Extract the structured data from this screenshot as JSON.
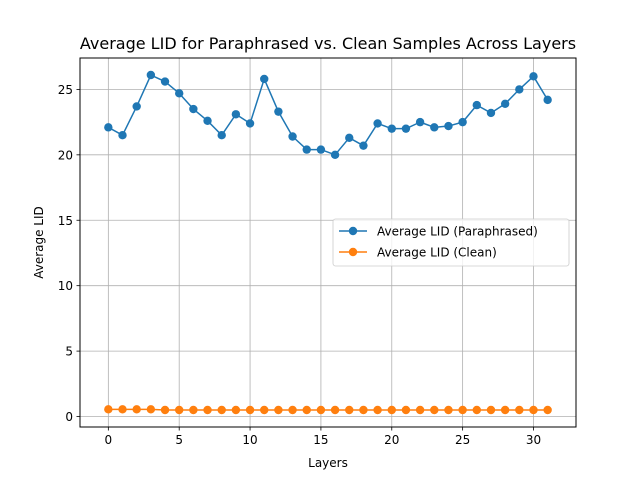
{
  "chart_data": {
    "type": "line",
    "title": "Average LID for Paraphrased vs. Clean Samples Across Layers",
    "xlabel": "Layers",
    "ylabel": "Average LID",
    "xlim": [
      -2.0,
      33.0
    ],
    "ylim": [
      -0.8,
      27.4
    ],
    "xticks": [
      0,
      5,
      10,
      15,
      20,
      25,
      30
    ],
    "yticks": [
      0,
      5,
      10,
      15,
      20,
      25
    ],
    "grid": true,
    "legend_position": "center-right",
    "x": [
      0,
      1,
      2,
      3,
      4,
      5,
      6,
      7,
      8,
      9,
      10,
      11,
      12,
      13,
      14,
      15,
      16,
      17,
      18,
      19,
      20,
      21,
      22,
      23,
      24,
      25,
      26,
      27,
      28,
      29,
      30,
      31
    ],
    "series": [
      {
        "name": "Average LID (Paraphrased)",
        "color": "#1f77b4",
        "values": [
          22.1,
          21.5,
          23.7,
          26.1,
          25.6,
          24.7,
          23.5,
          22.6,
          21.5,
          23.1,
          22.4,
          25.8,
          23.3,
          21.4,
          20.4,
          20.4,
          20.0,
          21.3,
          20.7,
          22.4,
          22.0,
          22.0,
          22.5,
          22.1,
          22.2,
          22.5,
          23.8,
          23.2,
          23.9,
          25.0,
          26.0,
          24.2
        ]
      },
      {
        "name": "Average LID (Clean)",
        "color": "#ff7f0e",
        "values": [
          0.55,
          0.55,
          0.55,
          0.55,
          0.5,
          0.5,
          0.5,
          0.5,
          0.5,
          0.5,
          0.5,
          0.5,
          0.5,
          0.5,
          0.5,
          0.5,
          0.5,
          0.5,
          0.5,
          0.5,
          0.5,
          0.5,
          0.5,
          0.5,
          0.5,
          0.5,
          0.5,
          0.5,
          0.5,
          0.5,
          0.5,
          0.5
        ]
      }
    ]
  }
}
